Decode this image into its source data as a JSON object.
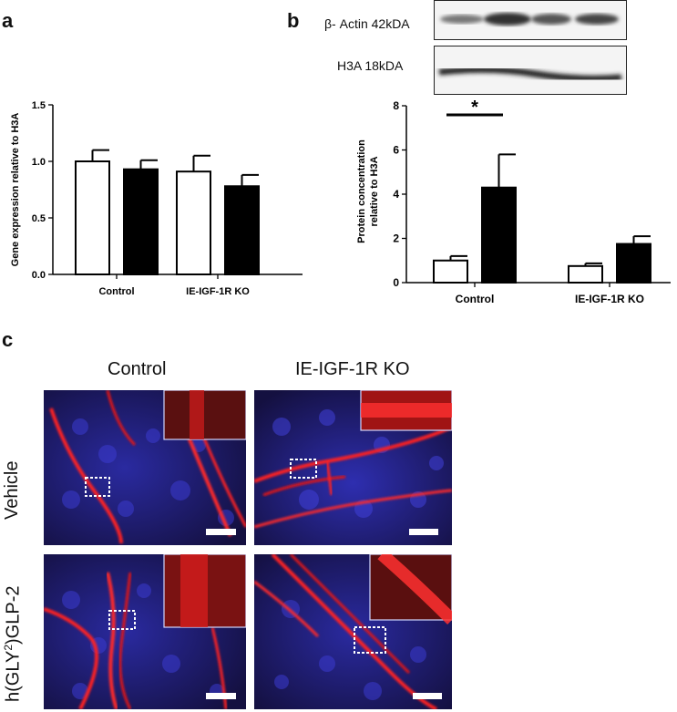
{
  "panels": {
    "a": {
      "letter": "a"
    },
    "b": {
      "letter": "b"
    },
    "c": {
      "letter": "c"
    }
  },
  "chart_data": [
    {
      "id": "a",
      "type": "bar",
      "title": "",
      "xlabel": "",
      "ylabel": "Gene expression relative to H3A",
      "categories": [
        "Control",
        "IE-IGF-1R KO"
      ],
      "ylim": [
        0,
        1.5
      ],
      "yticks": [
        "0.0",
        "0.5",
        "1.0",
        "1.5"
      ],
      "series": [
        {
          "values": [
            1.0,
            0.91
          ],
          "errors": [
            0.1,
            0.14
          ],
          "color": "#ffffff"
        },
        {
          "values": [
            0.93,
            0.78
          ],
          "errors": [
            0.08,
            0.1
          ],
          "color": "#000000"
        }
      ],
      "grid": false
    },
    {
      "id": "b",
      "type": "bar",
      "title": "",
      "xlabel": "",
      "ylabel_lines": [
        "Protein concentration",
        "relative to H3A"
      ],
      "categories": [
        "Control",
        "IE-IGF-1R KO"
      ],
      "ylim": [
        0,
        8
      ],
      "yticks": [
        "0",
        "2",
        "4",
        "6",
        "8"
      ],
      "series": [
        {
          "values": [
            1.0,
            0.75
          ],
          "errors": [
            0.2,
            0.12
          ],
          "color": "#ffffff"
        },
        {
          "values": [
            4.3,
            1.75
          ],
          "errors": [
            1.5,
            0.35
          ],
          "color": "#000000"
        }
      ],
      "significance": "*",
      "grid": false
    }
  ],
  "blot": {
    "actin_label": "β- Actin 42kDA",
    "h3a_label": "H3A 18kDA"
  },
  "microscopy": {
    "col_control": "Control",
    "col_ko": "IE-IGF-1R KO",
    "row_vehicle": "Vehicle",
    "row_glp2_prefix": "h(GLY",
    "row_glp2_sup": "2",
    "row_glp2_suffix": ")GLP-2"
  }
}
